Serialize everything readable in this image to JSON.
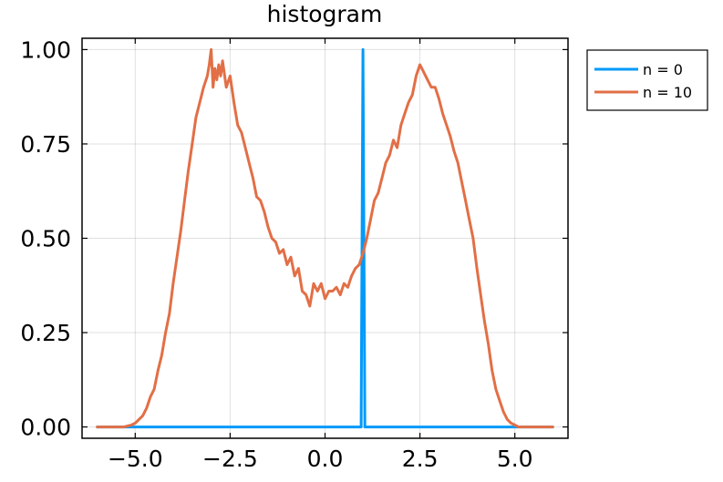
{
  "chart_data": {
    "type": "line",
    "title": "histogram",
    "xlabel": "",
    "ylabel": "",
    "xlim": [
      -6.4,
      6.4
    ],
    "ylim": [
      -0.03,
      1.03
    ],
    "x_ticks": [
      -5.0,
      -2.5,
      0.0,
      2.5,
      5.0
    ],
    "x_tick_labels": [
      "−5.0",
      "−2.5",
      "0.0",
      "2.5",
      "5.0"
    ],
    "y_ticks": [
      0.0,
      0.25,
      0.5,
      0.75,
      1.0
    ],
    "y_tick_labels": [
      "0.00",
      "0.25",
      "0.50",
      "0.75",
      "1.00"
    ],
    "grid": true,
    "legend_position": "outside-top-right",
    "series": [
      {
        "name": "n = 0",
        "color": "#009AFA",
        "x": [
          -6.0,
          0.95,
          1.0,
          1.05,
          6.0
        ],
        "y": [
          0.0,
          0.0,
          1.0,
          0.0,
          0.0
        ]
      },
      {
        "name": "n = 10",
        "color": "#E26F46",
        "x": [
          -6.0,
          -5.5,
          -5.3,
          -5.1,
          -5.0,
          -4.9,
          -4.8,
          -4.7,
          -4.6,
          -4.5,
          -4.4,
          -4.3,
          -4.2,
          -4.1,
          -4.0,
          -3.9,
          -3.8,
          -3.7,
          -3.6,
          -3.5,
          -3.4,
          -3.3,
          -3.2,
          -3.1,
          -3.05,
          -3.0,
          -2.95,
          -2.9,
          -2.85,
          -2.8,
          -2.75,
          -2.7,
          -2.6,
          -2.5,
          -2.4,
          -2.3,
          -2.2,
          -2.1,
          -2.0,
          -1.9,
          -1.8,
          -1.7,
          -1.6,
          -1.5,
          -1.4,
          -1.3,
          -1.2,
          -1.1,
          -1.0,
          -0.9,
          -0.8,
          -0.7,
          -0.6,
          -0.5,
          -0.4,
          -0.3,
          -0.2,
          -0.1,
          0.0,
          0.1,
          0.2,
          0.3,
          0.4,
          0.5,
          0.6,
          0.7,
          0.8,
          0.9,
          1.0,
          1.1,
          1.2,
          1.3,
          1.4,
          1.5,
          1.6,
          1.7,
          1.8,
          1.9,
          2.0,
          2.1,
          2.2,
          2.3,
          2.4,
          2.5,
          2.6,
          2.7,
          2.8,
          2.9,
          3.0,
          3.1,
          3.2,
          3.3,
          3.4,
          3.5,
          3.6,
          3.7,
          3.8,
          3.9,
          4.0,
          4.1,
          4.2,
          4.3,
          4.4,
          4.5,
          4.6,
          4.7,
          4.8,
          4.9,
          5.0,
          5.1,
          5.2,
          5.4,
          5.6,
          5.8,
          6.0
        ],
        "y": [
          0.0,
          0.0,
          0.0,
          0.005,
          0.01,
          0.02,
          0.03,
          0.05,
          0.08,
          0.1,
          0.15,
          0.19,
          0.25,
          0.3,
          0.38,
          0.45,
          0.52,
          0.6,
          0.68,
          0.75,
          0.82,
          0.86,
          0.9,
          0.93,
          0.96,
          1.0,
          0.9,
          0.95,
          0.92,
          0.96,
          0.93,
          0.97,
          0.9,
          0.93,
          0.86,
          0.8,
          0.78,
          0.74,
          0.7,
          0.66,
          0.61,
          0.6,
          0.57,
          0.53,
          0.5,
          0.49,
          0.46,
          0.47,
          0.43,
          0.45,
          0.4,
          0.42,
          0.36,
          0.35,
          0.32,
          0.38,
          0.36,
          0.38,
          0.34,
          0.36,
          0.36,
          0.37,
          0.35,
          0.38,
          0.37,
          0.4,
          0.42,
          0.43,
          0.46,
          0.5,
          0.55,
          0.6,
          0.62,
          0.66,
          0.7,
          0.72,
          0.76,
          0.74,
          0.8,
          0.83,
          0.86,
          0.88,
          0.93,
          0.96,
          0.94,
          0.92,
          0.9,
          0.9,
          0.87,
          0.83,
          0.8,
          0.77,
          0.73,
          0.7,
          0.65,
          0.6,
          0.55,
          0.5,
          0.42,
          0.35,
          0.28,
          0.22,
          0.15,
          0.1,
          0.07,
          0.04,
          0.02,
          0.01,
          0.005,
          0.0,
          0.0,
          0.0,
          0.0,
          0.0,
          0.0
        ]
      }
    ]
  }
}
